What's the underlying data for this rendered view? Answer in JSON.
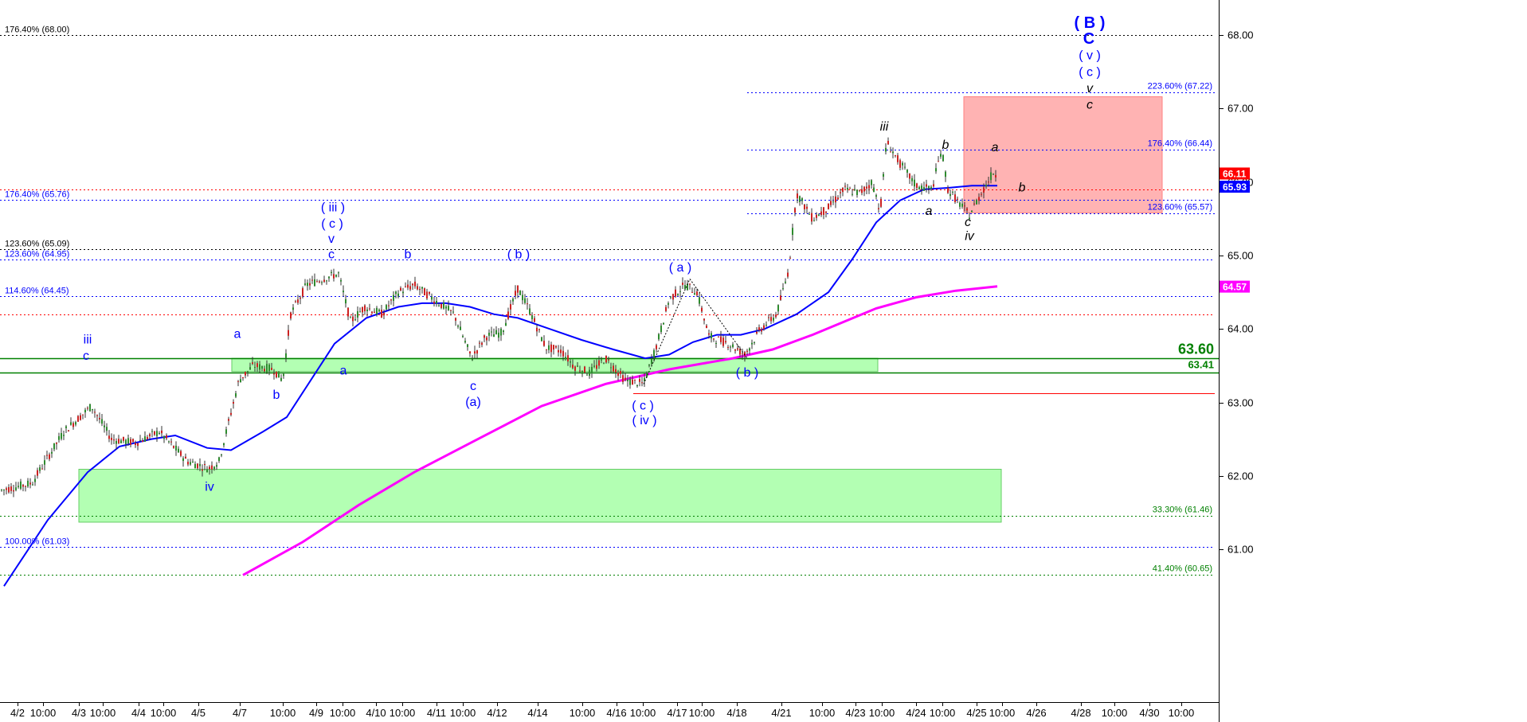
{
  "chart_data": {
    "type": "candlestick",
    "title": "",
    "xlabel": "",
    "ylabel": "",
    "ylim": [
      60.65,
      68.4
    ],
    "y_ticks": [
      "61.00",
      "62.00",
      "63.00",
      "64.00",
      "65.00",
      "66.00",
      "67.00",
      "68.00"
    ],
    "x_ticks": [
      "4/2",
      "10:00",
      "4/3",
      "10:00",
      "4/4",
      "10:00",
      "4/5",
      "4/7",
      "10:00",
      "4/9",
      "10:00",
      "4/10",
      "10:00",
      "4/11",
      "10:00",
      "4/12",
      "4/14",
      "10:00",
      "4/16",
      "10:00",
      "4/17",
      "10:00",
      "4/18",
      "4/21",
      "10:00",
      "4/23",
      "10:00",
      "4/24",
      "10:00",
      "4/25",
      "10:00",
      "4/26",
      "4/28",
      "10:00",
      "4/30",
      "10:00"
    ],
    "grid": false,
    "price_path": [
      [
        0,
        61.8
      ],
      [
        40,
        61.9
      ],
      [
        80,
        62.6
      ],
      [
        115,
        62.95
      ],
      [
        140,
        62.5
      ],
      [
        170,
        62.45
      ],
      [
        200,
        62.6
      ],
      [
        235,
        62.2
      ],
      [
        262,
        62.1
      ],
      [
        275,
        62.2
      ],
      [
        300,
        63.3
      ],
      [
        318,
        63.5
      ],
      [
        343,
        63.45
      ],
      [
        355,
        63.3
      ],
      [
        365,
        64.2
      ],
      [
        385,
        64.6
      ],
      [
        410,
        64.7
      ],
      [
        425,
        64.75
      ],
      [
        440,
        64.1
      ],
      [
        458,
        64.3
      ],
      [
        480,
        64.2
      ],
      [
        500,
        64.5
      ],
      [
        520,
        64.6
      ],
      [
        545,
        64.4
      ],
      [
        570,
        64.2
      ],
      [
        592,
        63.6
      ],
      [
        610,
        63.9
      ],
      [
        630,
        63.95
      ],
      [
        650,
        64.55
      ],
      [
        665,
        64.25
      ],
      [
        685,
        63.75
      ],
      [
        705,
        63.7
      ],
      [
        720,
        63.5
      ],
      [
        740,
        63.4
      ],
      [
        760,
        63.6
      ],
      [
        785,
        63.3
      ],
      [
        808,
        63.25
      ],
      [
        825,
        63.8
      ],
      [
        840,
        64.4
      ],
      [
        860,
        64.6
      ],
      [
        875,
        64.5
      ],
      [
        890,
        63.9
      ],
      [
        915,
        63.8
      ],
      [
        935,
        63.65
      ],
      [
        955,
        64.0
      ],
      [
        975,
        64.2
      ],
      [
        990,
        64.8
      ],
      [
        1000,
        65.85
      ],
      [
        1020,
        65.5
      ],
      [
        1040,
        65.65
      ],
      [
        1060,
        65.9
      ],
      [
        1080,
        65.85
      ],
      [
        1095,
        66.0
      ],
      [
        1105,
        65.6
      ],
      [
        1113,
        66.55
      ],
      [
        1130,
        66.25
      ],
      [
        1150,
        65.95
      ],
      [
        1170,
        65.9
      ],
      [
        1182,
        66.45
      ],
      [
        1190,
        65.9
      ],
      [
        1205,
        65.7
      ],
      [
        1217,
        65.55
      ],
      [
        1232,
        65.85
      ],
      [
        1248,
        66.15
      ],
      [
        1252,
        66.05
      ]
    ],
    "series": [
      {
        "name": "",
        "color": "#0000ff",
        "points": [
          [
            5,
            60.5
          ],
          [
            60,
            61.4
          ],
          [
            110,
            62.05
          ],
          [
            150,
            62.4
          ],
          [
            190,
            62.5
          ],
          [
            220,
            62.55
          ],
          [
            260,
            62.38
          ],
          [
            290,
            62.35
          ],
          [
            330,
            62.6
          ],
          [
            360,
            62.8
          ],
          [
            390,
            63.3
          ],
          [
            420,
            63.8
          ],
          [
            460,
            64.15
          ],
          [
            500,
            64.3
          ],
          [
            530,
            64.35
          ],
          [
            560,
            64.35
          ],
          [
            590,
            64.3
          ],
          [
            620,
            64.2
          ],
          [
            650,
            64.15
          ],
          [
            690,
            64.0
          ],
          [
            730,
            63.85
          ],
          [
            770,
            63.72
          ],
          [
            810,
            63.6
          ],
          [
            840,
            63.65
          ],
          [
            870,
            63.82
          ],
          [
            900,
            63.92
          ],
          [
            930,
            63.92
          ],
          [
            960,
            64.0
          ],
          [
            1000,
            64.2
          ],
          [
            1040,
            64.5
          ],
          [
            1070,
            64.95
          ],
          [
            1100,
            65.45
          ],
          [
            1130,
            65.75
          ],
          [
            1160,
            65.9
          ],
          [
            1190,
            65.92
          ],
          [
            1220,
            65.95
          ],
          [
            1252,
            65.95
          ]
        ]
      },
      {
        "name": "",
        "color": "#ff00ff",
        "points": [
          [
            305,
            60.65
          ],
          [
            380,
            61.1
          ],
          [
            450,
            61.6
          ],
          [
            520,
            62.05
          ],
          [
            600,
            62.5
          ],
          [
            680,
            62.95
          ],
          [
            760,
            63.25
          ],
          [
            840,
            63.45
          ],
          [
            920,
            63.6
          ],
          [
            970,
            63.72
          ],
          [
            1020,
            63.92
          ],
          [
            1060,
            64.1
          ],
          [
            1100,
            64.28
          ],
          [
            1150,
            64.43
          ],
          [
            1200,
            64.52
          ],
          [
            1252,
            64.58
          ]
        ]
      }
    ],
    "price_tags": [
      {
        "value": 66.11,
        "label": "66.11",
        "color": "#ff0000"
      },
      {
        "value": 65.93,
        "label": "65.93",
        "color": "#0000ff"
      },
      {
        "value": 64.57,
        "label": "64.57",
        "color": "#ff00ff"
      }
    ],
    "levels": [
      {
        "label": "176.40% (68.00)",
        "value": 68.0,
        "color": "#000000",
        "side": "left"
      },
      {
        "label": "223.60% (67.22)",
        "value": 67.22,
        "color": "#0000ff",
        "side": "right"
      },
      {
        "label": "176.40% (66.44)",
        "value": 66.44,
        "color": "#0000ff",
        "side": "right"
      },
      {
        "label": "176.40% (65.76)",
        "value": 65.76,
        "color": "#0000ff",
        "side": "left"
      },
      {
        "label": "123.60% (65.57)",
        "value": 65.57,
        "color": "#0000ff",
        "side": "right"
      },
      {
        "label": "123.60% (65.09)",
        "value": 65.09,
        "color": "#000000",
        "side": "left"
      },
      {
        "label": "123.60% (64.95)",
        "value": 64.95,
        "color": "#0000ff",
        "side": "left"
      },
      {
        "label": "114.60% (64.45)",
        "value": 64.45,
        "color": "#0000ff",
        "side": "left"
      },
      {
        "label": "33.30% (61.46)",
        "value": 61.46,
        "color": "#008000",
        "side": "right"
      },
      {
        "label": "100.00% (61.03)",
        "value": 61.03,
        "color": "#0000ff",
        "side": "left"
      },
      {
        "label": "41.40% (60.65)",
        "value": 60.65,
        "color": "#008000",
        "side": "right"
      },
      {
        "label": "",
        "value": 65.9,
        "color": "#ff0000",
        "side": "none"
      },
      {
        "label": "",
        "value": 64.2,
        "color": "#ff0000",
        "side": "none"
      }
    ],
    "support_labels": [
      {
        "label": "63.60",
        "value": 63.6,
        "color": "#008000",
        "size": "large"
      },
      {
        "label": "63.41",
        "value": 63.41,
        "color": "#008000",
        "size": "small"
      }
    ],
    "zones": [
      {
        "x0": 291,
        "x1": 1102,
        "y0": 63.42,
        "y1": 63.6,
        "color": "#99ff99"
      },
      {
        "x0": 99,
        "x1": 1257,
        "y0": 61.37,
        "y1": 62.09,
        "color": "#99ff99"
      },
      {
        "x0": 1210,
        "x1": 1459,
        "y0": 65.58,
        "y1": 67.16,
        "color": "#ff9999"
      }
    ],
    "wave_labels": [
      {
        "text": "iii",
        "x": 110,
        "y": 63.8,
        "color": "#0000ff"
      },
      {
        "text": "c",
        "x": 108,
        "y": 63.58,
        "color": "#0000ff"
      },
      {
        "text": "iv",
        "x": 263,
        "y": 61.8,
        "color": "#0000ff"
      },
      {
        "text": "a",
        "x": 298,
        "y": 63.88,
        "color": "#0000ff"
      },
      {
        "text": "b",
        "x": 347,
        "y": 63.05,
        "color": "#0000ff"
      },
      {
        "text": "a",
        "x": 431,
        "y": 63.38,
        "color": "#0000ff"
      },
      {
        "text": "( iii )",
        "x": 418,
        "y": 65.6,
        "color": "#0000ff"
      },
      {
        "text": "( c )",
        "x": 417,
        "y": 65.38,
        "color": "#0000ff"
      },
      {
        "text": "v",
        "x": 416,
        "y": 65.17,
        "color": "#0000ff"
      },
      {
        "text": "c",
        "x": 416,
        "y": 64.96,
        "color": "#0000ff"
      },
      {
        "text": "b",
        "x": 512,
        "y": 64.96,
        "color": "#0000ff"
      },
      {
        "text": "c",
        "x": 594,
        "y": 63.17,
        "color": "#0000ff"
      },
      {
        "text": "(a)",
        "x": 594,
        "y": 62.95,
        "color": "#0000ff"
      },
      {
        "text": "( b )",
        "x": 651,
        "y": 64.96,
        "color": "#0000ff"
      },
      {
        "text": "( c )",
        "x": 807,
        "y": 62.9,
        "color": "#0000ff"
      },
      {
        "text": "( iv )",
        "x": 809,
        "y": 62.7,
        "color": "#0000ff"
      },
      {
        "text": "( a )",
        "x": 854,
        "y": 64.78,
        "color": "#0000ff"
      },
      {
        "text": "( b )",
        "x": 938,
        "y": 63.35,
        "color": "#0000ff"
      },
      {
        "text": "iii",
        "x": 1110,
        "y": 66.7,
        "color": "#000000",
        "italic": true
      },
      {
        "text": "b",
        "x": 1187,
        "y": 66.45,
        "color": "#000000",
        "italic": true
      },
      {
        "text": "a",
        "x": 1249,
        "y": 66.42,
        "color": "#000000",
        "italic": true
      },
      {
        "text": "b",
        "x": 1283,
        "y": 65.87,
        "color": "#000000",
        "italic": true
      },
      {
        "text": "a",
        "x": 1166,
        "y": 65.55,
        "color": "#000000",
        "italic": true
      },
      {
        "text": "c",
        "x": 1215,
        "y": 65.4,
        "color": "#000000",
        "italic": true
      },
      {
        "text": "iv",
        "x": 1217,
        "y": 65.21,
        "color": "#000000",
        "italic": true
      },
      {
        "text": "( B )",
        "x": 1368,
        "y": 68.1,
        "color": "#0000ff",
        "big": true
      },
      {
        "text": "C",
        "x": 1367,
        "y": 67.88,
        "color": "#0000ff",
        "big": true
      },
      {
        "text": "( v )",
        "x": 1368,
        "y": 67.67,
        "color": "#0000ff"
      },
      {
        "text": "( c )",
        "x": 1368,
        "y": 67.44,
        "color": "#0000ff"
      },
      {
        "text": "v",
        "x": 1368,
        "y": 67.22,
        "color": "#000000",
        "italic": true
      },
      {
        "text": "c",
        "x": 1368,
        "y": 67.0,
        "color": "#000000",
        "italic": true
      }
    ]
  }
}
